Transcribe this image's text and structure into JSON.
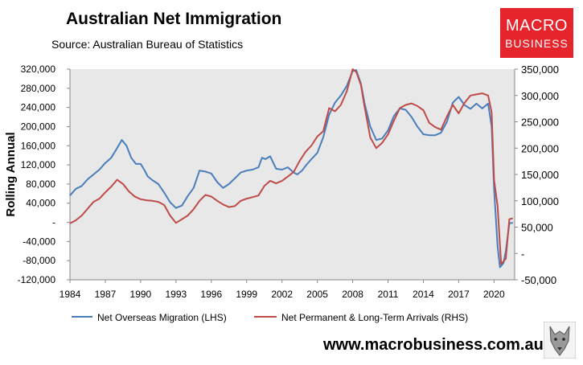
{
  "header": {
    "title": "Australian Net Immigration",
    "subtitle": "Source: Australian Bureau of Statistics"
  },
  "logo": {
    "line1": "MACRO",
    "line2": "BUSINESS"
  },
  "footer": {
    "url": "www.macrobusiness.com.au"
  },
  "colors": {
    "nom": "#4a7ebb",
    "arrivals": "#be4b48",
    "plot_bg": "#e8e8e8",
    "logo_bg": "#e5242b"
  },
  "chart_data": {
    "type": "line",
    "title": "Australian Net Immigration",
    "ylabel": "Rolling Annual",
    "xlabel": "",
    "x_ticks": [
      "1984",
      "1987",
      "1990",
      "1993",
      "1996",
      "1999",
      "2002",
      "2005",
      "2008",
      "2011",
      "2014",
      "2017",
      "2020"
    ],
    "x_range": [
      1984,
      2021.75
    ],
    "y_left": {
      "range": [
        -120000,
        320000
      ],
      "ticks": [
        320000,
        280000,
        240000,
        200000,
        160000,
        120000,
        80000,
        40000,
        0,
        -40000,
        -80000,
        -120000
      ],
      "tick_labels": [
        "320,000",
        "280,000",
        "240,000",
        "200,000",
        "160,000",
        "120,000",
        "80,000",
        "40,000",
        "-",
        "-40,000",
        "-80,000",
        "-120,000"
      ]
    },
    "y_right": {
      "range": [
        -50000,
        350000
      ],
      "ticks": [
        350000,
        300000,
        250000,
        200000,
        150000,
        100000,
        50000,
        0,
        -50000
      ],
      "tick_labels": [
        "350,000",
        "300,000",
        "250,000",
        "200,000",
        "150,000",
        "100,000",
        "50,000",
        "-",
        "-50,000"
      ]
    },
    "legend": [
      "Net Overseas Migration (LHS)",
      "Net Permanent & Long-Term Arrivals (RHS)"
    ],
    "series": [
      {
        "name": "Net Overseas Migration (LHS)",
        "axis": "left",
        "color": "#4a7ebb",
        "points": [
          [
            1984,
            56000
          ],
          [
            1984.5,
            70000
          ],
          [
            1985,
            76000
          ],
          [
            1985.5,
            90000
          ],
          [
            1986,
            100000
          ],
          [
            1986.5,
            110000
          ],
          [
            1987,
            124000
          ],
          [
            1987.5,
            135000
          ],
          [
            1988,
            155000
          ],
          [
            1988.4,
            172000
          ],
          [
            1988.8,
            160000
          ],
          [
            1989.2,
            135000
          ],
          [
            1989.6,
            122000
          ],
          [
            1990,
            122000
          ],
          [
            1990.3,
            110000
          ],
          [
            1990.6,
            96000
          ],
          [
            1991,
            88000
          ],
          [
            1991.5,
            80000
          ],
          [
            1992,
            62000
          ],
          [
            1992.5,
            42000
          ],
          [
            1993,
            30000
          ],
          [
            1993.5,
            35000
          ],
          [
            1994,
            55000
          ],
          [
            1994.5,
            72000
          ],
          [
            1995,
            108000
          ],
          [
            1995.5,
            106000
          ],
          [
            1996,
            102000
          ],
          [
            1996.5,
            84000
          ],
          [
            1997,
            72000
          ],
          [
            1997.5,
            80000
          ],
          [
            1998,
            92000
          ],
          [
            1998.5,
            104000
          ],
          [
            1999,
            108000
          ],
          [
            1999.5,
            110000
          ],
          [
            2000,
            115000
          ],
          [
            2000.3,
            135000
          ],
          [
            2000.6,
            132000
          ],
          [
            2001,
            138000
          ],
          [
            2001.5,
            112000
          ],
          [
            2002,
            110000
          ],
          [
            2002.5,
            115000
          ],
          [
            2003,
            104000
          ],
          [
            2003.3,
            100000
          ],
          [
            2003.7,
            108000
          ],
          [
            2004,
            118000
          ],
          [
            2004.5,
            132000
          ],
          [
            2005,
            145000
          ],
          [
            2005.5,
            178000
          ],
          [
            2006,
            225000
          ],
          [
            2006.5,
            250000
          ],
          [
            2007,
            265000
          ],
          [
            2007.5,
            285000
          ],
          [
            2008,
            316000
          ],
          [
            2008.3,
            318000
          ],
          [
            2008.7,
            290000
          ],
          [
            2009,
            250000
          ],
          [
            2009.5,
            200000
          ],
          [
            2010,
            172000
          ],
          [
            2010.5,
            175000
          ],
          [
            2011,
            192000
          ],
          [
            2011.5,
            222000
          ],
          [
            2012,
            238000
          ],
          [
            2012.5,
            235000
          ],
          [
            2013,
            220000
          ],
          [
            2013.5,
            200000
          ],
          [
            2014,
            184000
          ],
          [
            2014.5,
            182000
          ],
          [
            2015,
            182000
          ],
          [
            2015.5,
            187000
          ],
          [
            2016,
            210000
          ],
          [
            2016.5,
            250000
          ],
          [
            2017,
            262000
          ],
          [
            2017.5,
            245000
          ],
          [
            2018,
            237000
          ],
          [
            2018.5,
            248000
          ],
          [
            2019,
            238000
          ],
          [
            2019.5,
            248000
          ],
          [
            2019.8,
            200000
          ],
          [
            2020,
            70000
          ],
          [
            2020.3,
            -50000
          ],
          [
            2020.5,
            -94000
          ],
          [
            2020.8,
            -85000
          ],
          [
            2021,
            -60000
          ],
          [
            2021.3,
            -2000
          ],
          [
            2021.6,
            -1000
          ]
        ]
      },
      {
        "name": "Net Permanent & Long-Term Arrivals (RHS)",
        "axis": "right",
        "color": "#be4b48",
        "points": [
          [
            1984,
            57000
          ],
          [
            1984.5,
            63000
          ],
          [
            1985,
            72000
          ],
          [
            1985.5,
            85000
          ],
          [
            1986,
            98000
          ],
          [
            1986.5,
            104000
          ],
          [
            1987,
            116000
          ],
          [
            1987.5,
            127000
          ],
          [
            1988,
            140000
          ],
          [
            1988.5,
            132000
          ],
          [
            1989,
            118000
          ],
          [
            1989.5,
            108000
          ],
          [
            1990,
            103000
          ],
          [
            1990.5,
            101000
          ],
          [
            1991,
            100000
          ],
          [
            1991.5,
            98000
          ],
          [
            1992,
            92000
          ],
          [
            1992.5,
            72000
          ],
          [
            1993,
            58000
          ],
          [
            1993.5,
            65000
          ],
          [
            1994,
            72000
          ],
          [
            1994.5,
            84000
          ],
          [
            1995,
            100000
          ],
          [
            1995.5,
            111000
          ],
          [
            1996,
            108000
          ],
          [
            1996.5,
            100000
          ],
          [
            1997,
            93000
          ],
          [
            1997.5,
            88000
          ],
          [
            1998,
            90000
          ],
          [
            1998.5,
            100000
          ],
          [
            1999,
            104000
          ],
          [
            1999.5,
            107000
          ],
          [
            2000,
            110000
          ],
          [
            2000.5,
            128000
          ],
          [
            2001,
            138000
          ],
          [
            2001.5,
            133000
          ],
          [
            2002,
            138000
          ],
          [
            2002.5,
            146000
          ],
          [
            2003,
            155000
          ],
          [
            2003.5,
            176000
          ],
          [
            2004,
            193000
          ],
          [
            2004.5,
            205000
          ],
          [
            2005,
            222000
          ],
          [
            2005.5,
            232000
          ],
          [
            2006,
            276000
          ],
          [
            2006.5,
            270000
          ],
          [
            2007,
            282000
          ],
          [
            2007.5,
            308000
          ],
          [
            2008,
            350000
          ],
          [
            2008.3,
            345000
          ],
          [
            2008.7,
            320000
          ],
          [
            2009,
            280000
          ],
          [
            2009.5,
            220000
          ],
          [
            2010,
            200000
          ],
          [
            2010.5,
            210000
          ],
          [
            2011,
            226000
          ],
          [
            2011.5,
            252000
          ],
          [
            2012,
            276000
          ],
          [
            2012.5,
            282000
          ],
          [
            2013,
            285000
          ],
          [
            2013.5,
            280000
          ],
          [
            2014,
            272000
          ],
          [
            2014.5,
            248000
          ],
          [
            2015,
            240000
          ],
          [
            2015.5,
            235000
          ],
          [
            2016,
            260000
          ],
          [
            2016.5,
            282000
          ],
          [
            2017,
            266000
          ],
          [
            2017.5,
            286000
          ],
          [
            2018,
            300000
          ],
          [
            2018.5,
            302000
          ],
          [
            2019,
            304000
          ],
          [
            2019.5,
            300000
          ],
          [
            2019.8,
            268000
          ],
          [
            2020,
            140000
          ],
          [
            2020.3,
            90000
          ],
          [
            2020.6,
            -20000
          ],
          [
            2021,
            -10000
          ],
          [
            2021.3,
            65000
          ],
          [
            2021.6,
            67000
          ]
        ]
      }
    ]
  }
}
